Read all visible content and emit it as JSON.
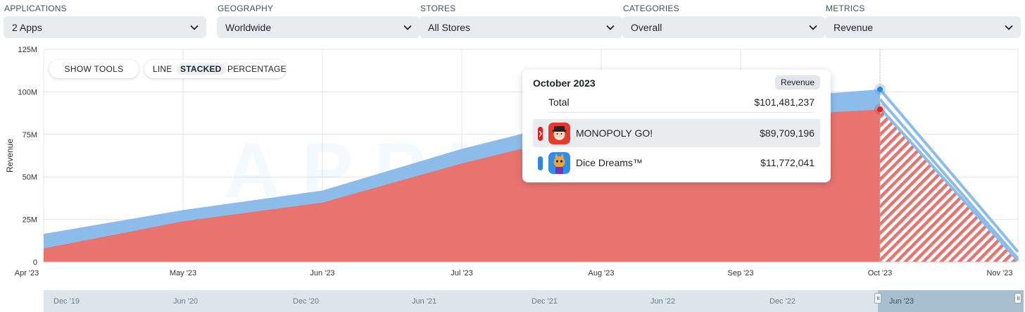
{
  "filters": [
    {
      "label": "APPLICATIONS",
      "value": "2 Apps"
    },
    {
      "label": "GEOGRAPHY",
      "value": "Worldwide"
    },
    {
      "label": "STORES",
      "value": "All Stores"
    },
    {
      "label": "CATEGORIES",
      "value": "Overall"
    },
    {
      "label": "METRICS",
      "value": "Revenue"
    }
  ],
  "toolbar": {
    "show_tools": "SHOW TOOLS",
    "modes": [
      "LINE",
      "STACKED",
      "PERCENTAGE"
    ],
    "active_mode": "STACKED"
  },
  "watermark": "APPMAGIC",
  "chart_data": {
    "type": "area",
    "stacked": true,
    "ylabel": "Revenue",
    "ylim": [
      0,
      125000000
    ],
    "yticks": [
      0,
      25000000,
      50000000,
      75000000,
      100000000,
      125000000
    ],
    "ytick_labels": [
      "0",
      "25M",
      "50M",
      "75M",
      "100M",
      "125M"
    ],
    "categories": [
      "Apr '23",
      "May '23",
      "Jun '23",
      "Jul '23",
      "Aug '23",
      "Sep '23",
      "Oct '23",
      "Nov '23"
    ],
    "series": [
      {
        "name": "MONOPOLY GO!",
        "color": "#e8736f",
        "values": [
          8000000,
          24000000,
          35000000,
          58000000,
          78000000,
          85000000,
          89709196,
          0
        ]
      },
      {
        "name": "Dice Dreams™",
        "color": "#8bbcea",
        "values": [
          8500000,
          6500000,
          7000000,
          8500000,
          9000000,
          10000000,
          11772041,
          6000000
        ]
      }
    ],
    "incomplete_from": "Oct '23",
    "grid": true
  },
  "tooltip": {
    "title": "October 2023",
    "badge": "Revenue",
    "total_label": "Total",
    "total_value": "$101,481,237",
    "rows": [
      {
        "name": "MONOPOLY GO!",
        "value": "$89,709,196",
        "color": "#e8736f"
      },
      {
        "name": "Dice Dreams™",
        "value": "$11,772,041",
        "color": "#2f86e0"
      }
    ]
  },
  "navigator": {
    "labels": [
      "Dec '19",
      "Jun '20",
      "Dec '20",
      "Jun '21",
      "Dec '21",
      "Jun '22",
      "Dec '22",
      "Jun '23"
    ]
  },
  "colors": {
    "monopoly": "#e8736f",
    "dice": "#8bbcea",
    "dice_marker": "#2f86e0",
    "monopoly_marker": "#e02020"
  }
}
